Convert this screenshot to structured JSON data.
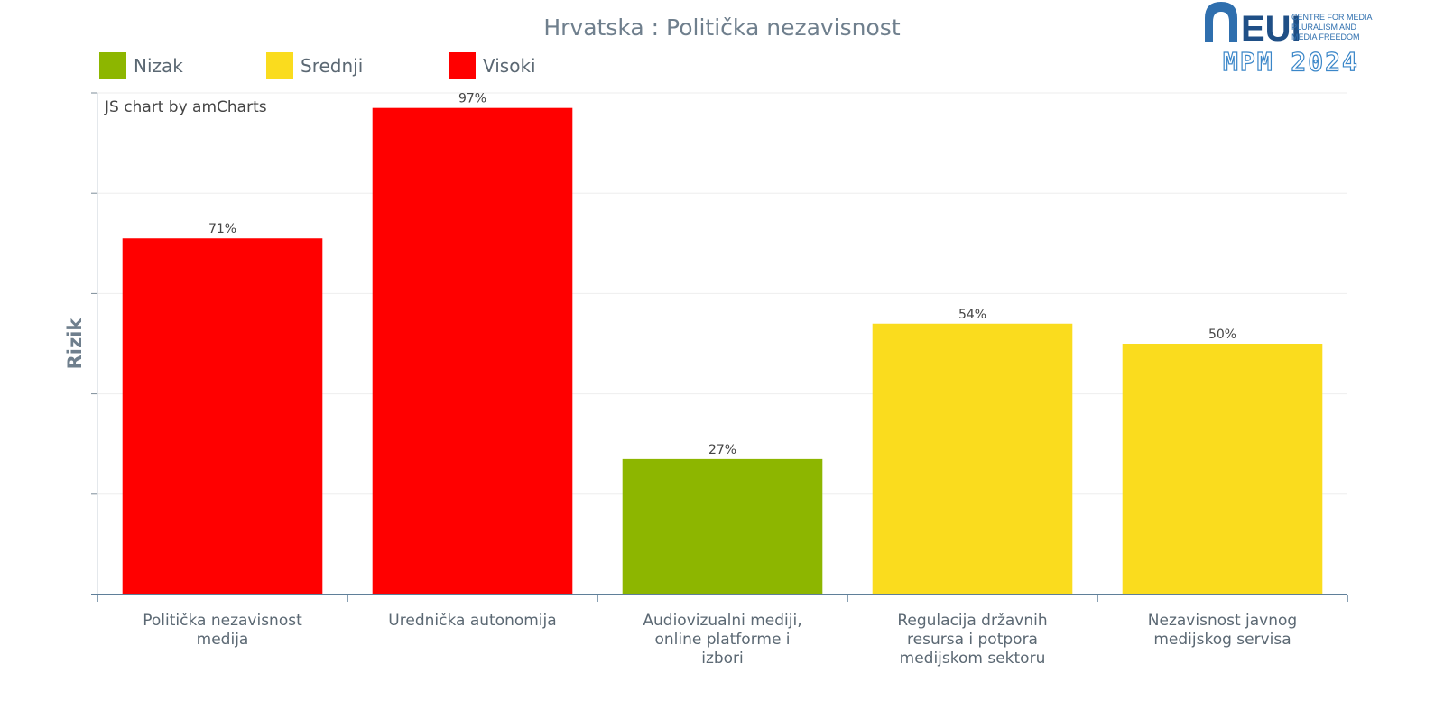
{
  "chart_data": {
    "type": "bar",
    "title": "Hrvatska : Politička nezavisnost",
    "ylabel": "Rizik",
    "xlabel": "",
    "ylim": [
      0,
      100
    ],
    "grid": true,
    "legend_position": "top-left",
    "legend": [
      {
        "label": "Nizak",
        "color": "#8DB600"
      },
      {
        "label": "Srednji",
        "color": "#FADC1E"
      },
      {
        "label": "Visoki",
        "color": "#FF0000"
      }
    ],
    "categories": [
      [
        "Politička nezavisnost",
        "medija"
      ],
      [
        "Urednička autonomija"
      ],
      [
        "Audiovizualni mediji,",
        "online platforme i",
        "izbori"
      ],
      [
        "Regulacija državnih",
        "resursa i potpora",
        "medijskom sektoru"
      ],
      [
        "Nezavisnost javnog",
        "medijskog servisa"
      ]
    ],
    "values": [
      71,
      97,
      27,
      54,
      50
    ],
    "value_labels": [
      "71%",
      "97%",
      "27%",
      "54%",
      "50%"
    ],
    "bar_colors": [
      "#FF0000",
      "#FF0000",
      "#8DB600",
      "#FADC1E",
      "#FADC1E"
    ],
    "credit": "JS chart by amCharts"
  },
  "logo": {
    "brand": "EUI",
    "lines": [
      "CENTRE FOR MEDIA",
      "PLURALISM AND",
      "MEDIA FREEDOM"
    ],
    "edition": "MPM 2024"
  }
}
